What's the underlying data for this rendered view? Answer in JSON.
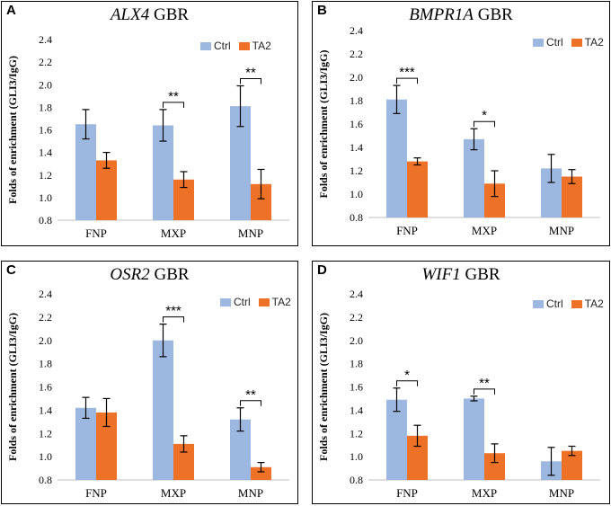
{
  "colors": {
    "ctrl": "#9DB8E0",
    "ta2": "#EE7128",
    "error": "#000000"
  },
  "legend": {
    "ctrl": "Ctrl",
    "ta2": "TA2"
  },
  "chart_data": [
    {
      "type": "bar",
      "letter": "A",
      "gene": "ALX4",
      "suffix": " GBR",
      "title": "ALX4 GBR",
      "ylabel": "Folds of enrichment (GLI3/IgG)",
      "ylim": [
        0.8,
        2.4
      ],
      "yticks": [
        "0.8",
        "1.0",
        "1.2",
        "1.4",
        "1.6",
        "1.8",
        "2.0",
        "2.2",
        "2.4"
      ],
      "categories": [
        "FNP",
        "MXP",
        "MNP"
      ],
      "series": [
        {
          "name": "Ctrl",
          "values": [
            1.65,
            1.64,
            1.81
          ],
          "errors": [
            0.13,
            0.14,
            0.18
          ]
        },
        {
          "name": "TA2",
          "values": [
            1.33,
            1.16,
            1.12
          ],
          "errors": [
            0.07,
            0.07,
            0.13
          ]
        }
      ],
      "significance": [
        "",
        "**",
        "**"
      ]
    },
    {
      "type": "bar",
      "letter": "B",
      "gene": "BMPR1A",
      "suffix": " GBR",
      "title": "BMPR1A GBR",
      "ylabel": "Folds of enrichment (GLI3/IgG)",
      "ylim": [
        0.8,
        2.4
      ],
      "yticks": [
        "0.8",
        "1.0",
        "1.2",
        "1.4",
        "1.6",
        "1.8",
        "2.0",
        "2.2",
        "2.4"
      ],
      "categories": [
        "FNP",
        "MXP",
        "MNP"
      ],
      "series": [
        {
          "name": "Ctrl",
          "values": [
            1.81,
            1.47,
            1.22
          ],
          "errors": [
            0.12,
            0.09,
            0.12
          ]
        },
        {
          "name": "TA2",
          "values": [
            1.28,
            1.09,
            1.15
          ],
          "errors": [
            0.03,
            0.11,
            0.06
          ]
        }
      ],
      "significance": [
        "***",
        "*",
        ""
      ]
    },
    {
      "type": "bar",
      "letter": "C",
      "gene": "OSR2",
      "suffix": " GBR",
      "title": "OSR2 GBR",
      "ylabel": "Folds of enrichment (GLI3/IgG)",
      "ylim": [
        0.8,
        2.4
      ],
      "yticks": [
        "0.8",
        "1.0",
        "1.2",
        "1.4",
        "1.6",
        "1.8",
        "2.0",
        "2.2",
        "2.4"
      ],
      "categories": [
        "FNP",
        "MXP",
        "MNP"
      ],
      "series": [
        {
          "name": "Ctrl",
          "values": [
            1.42,
            2.0,
            1.32
          ],
          "errors": [
            0.09,
            0.14,
            0.1
          ]
        },
        {
          "name": "TA2",
          "values": [
            1.38,
            1.11,
            0.91
          ],
          "errors": [
            0.12,
            0.07,
            0.04
          ]
        }
      ],
      "significance": [
        "",
        "***",
        "**"
      ]
    },
    {
      "type": "bar",
      "letter": "D",
      "gene": "WIF1",
      "suffix": " GBR",
      "title": "WIF1 GBR",
      "ylabel": "Folds of enrichment (GLI3/IgG)",
      "ylim": [
        0.8,
        2.4
      ],
      "yticks": [
        "0.8",
        "1.0",
        "1.2",
        "1.4",
        "1.6",
        "1.8",
        "2.0",
        "2.2",
        "2.4"
      ],
      "categories": [
        "FNP",
        "MXP",
        "MNP"
      ],
      "series": [
        {
          "name": "Ctrl",
          "values": [
            1.49,
            1.5,
            0.96
          ],
          "errors": [
            0.1,
            0.02,
            0.12
          ]
        },
        {
          "name": "TA2",
          "values": [
            1.18,
            1.03,
            1.05
          ],
          "errors": [
            0.09,
            0.08,
            0.04
          ]
        }
      ],
      "significance": [
        "*",
        "**",
        ""
      ]
    }
  ]
}
